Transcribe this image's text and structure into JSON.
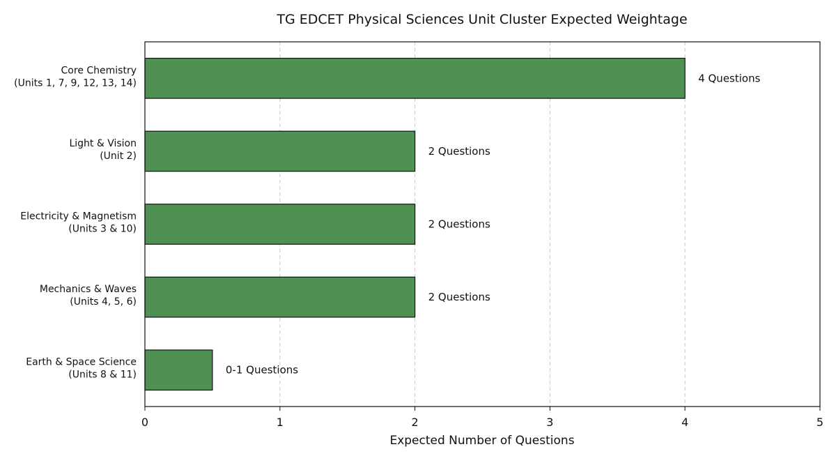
{
  "chart_data": {
    "type": "bar",
    "orientation": "horizontal",
    "title": "TG EDCET Physical Sciences Unit Cluster Expected Weightage",
    "xlabel": "Expected Number of Questions",
    "ylabel": "",
    "xlim": [
      0,
      5
    ],
    "xticks": [
      "0",
      "1",
      "2",
      "3",
      "4",
      "5"
    ],
    "grid": "x-dashed",
    "bar_color": "#4f9153",
    "categories": [
      [
        "Core Chemistry",
        "(Units 1, 7, 9, 12, 13, 14)"
      ],
      [
        "Light & Vision",
        "(Unit 2)"
      ],
      [
        "Electricity & Magnetism",
        "(Units 3 & 10)"
      ],
      [
        "Mechanics & Waves",
        "(Units 4, 5, 6)"
      ],
      [
        "Earth & Space Science",
        "(Units 8 & 11)"
      ]
    ],
    "values": [
      4,
      2,
      2,
      2,
      0.5
    ],
    "data_labels": [
      "4 Questions",
      "2 Questions",
      "2 Questions",
      "2 Questions",
      "0-1 Questions"
    ]
  }
}
